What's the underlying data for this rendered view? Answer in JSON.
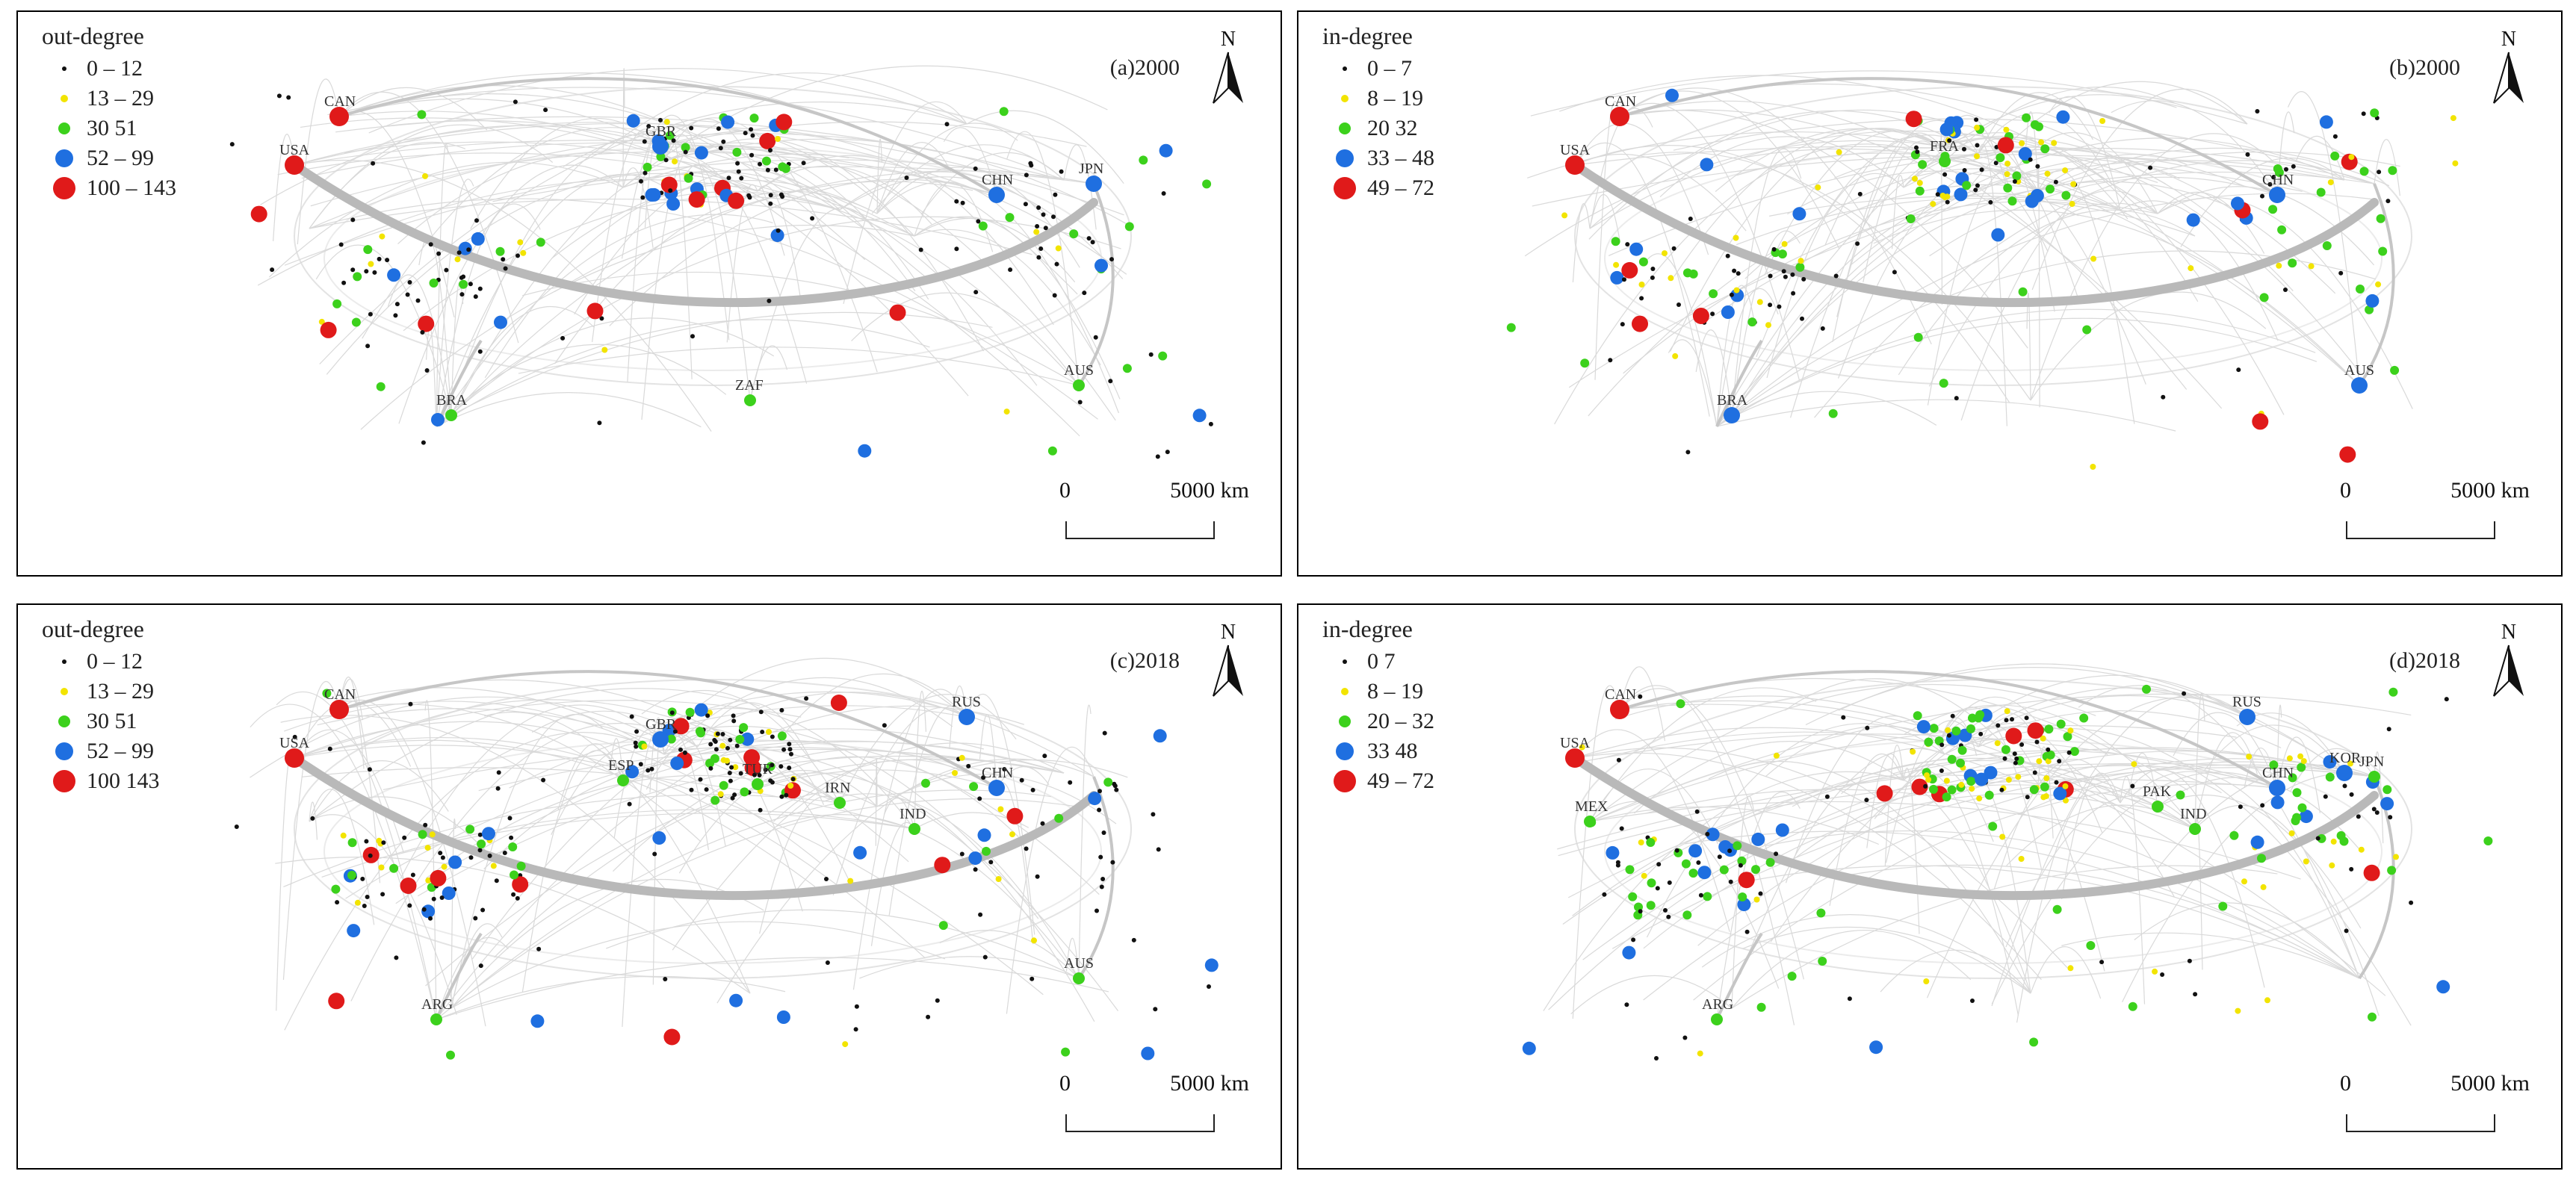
{
  "panels": [
    {
      "id": "a",
      "label": "(a)2000",
      "legend": {
        "title": "out-degree",
        "classes": [
          {
            "range": "0 – 12",
            "color": "#111111",
            "size": "tiny"
          },
          {
            "range": "13 – 29",
            "color": "#f2e400",
            "size": "small"
          },
          {
            "range": "30   51",
            "color": "#3cd11c",
            "size": "medium"
          },
          {
            "range": "52 – 99",
            "color": "#1f6fe0",
            "size": "large"
          },
          {
            "range": "100 – 143",
            "color": "#e01a1a",
            "size": "xlarge"
          }
        ]
      },
      "country_labels": [
        "CAN",
        "USA",
        "GBR",
        "CHN",
        "JPN",
        "AUS",
        "BRA",
        "ZAF"
      ]
    },
    {
      "id": "b",
      "label": "(b)2000",
      "legend": {
        "title": "in-degree",
        "classes": [
          {
            "range": "0 – 7",
            "color": "#111111",
            "size": "tiny"
          },
          {
            "range": "8 – 19",
            "color": "#f2e400",
            "size": "small"
          },
          {
            "range": "20   32",
            "color": "#3cd11c",
            "size": "medium"
          },
          {
            "range": "33 – 48",
            "color": "#1f6fe0",
            "size": "large"
          },
          {
            "range": "49 – 72",
            "color": "#e01a1a",
            "size": "xlarge"
          }
        ]
      },
      "country_labels": [
        "CAN",
        "USA",
        "CHN",
        "AUS",
        "BRA",
        "FRA"
      ]
    },
    {
      "id": "c",
      "label": "(c)2018",
      "legend": {
        "title": "out-degree",
        "classes": [
          {
            "range": "0 – 12",
            "color": "#111111",
            "size": "tiny"
          },
          {
            "range": "13 – 29",
            "color": "#f2e400",
            "size": "small"
          },
          {
            "range": "30   51",
            "color": "#3cd11c",
            "size": "medium"
          },
          {
            "range": "52 – 99",
            "color": "#1f6fe0",
            "size": "large"
          },
          {
            "range": "100   143",
            "color": "#e01a1a",
            "size": "xlarge"
          }
        ]
      },
      "country_labels": [
        "CAN",
        "USA",
        "GBR",
        "RUS",
        "CHN",
        "ESP",
        "TUR",
        "ARG",
        "AUS",
        "IND",
        "IRN"
      ]
    },
    {
      "id": "d",
      "label": "(d)2018",
      "legend": {
        "title": "in-degree",
        "classes": [
          {
            "range": "0   7",
            "color": "#111111",
            "size": "tiny"
          },
          {
            "range": "8 – 19",
            "color": "#f2e400",
            "size": "small"
          },
          {
            "range": "20 – 32",
            "color": "#3cd11c",
            "size": "medium"
          },
          {
            "range": "33   48",
            "color": "#1f6fe0",
            "size": "large"
          },
          {
            "range": "49 – 72",
            "color": "#e01a1a",
            "size": "xlarge"
          }
        ]
      },
      "country_labels": [
        "CAN",
        "USA",
        "RUS",
        "CHN",
        "KOR",
        "JPN",
        "IND",
        "PAK",
        "ARG",
        "MEX"
      ]
    }
  ],
  "north_letter": "N",
  "scale": {
    "start": "0",
    "end": "5000 km"
  }
}
